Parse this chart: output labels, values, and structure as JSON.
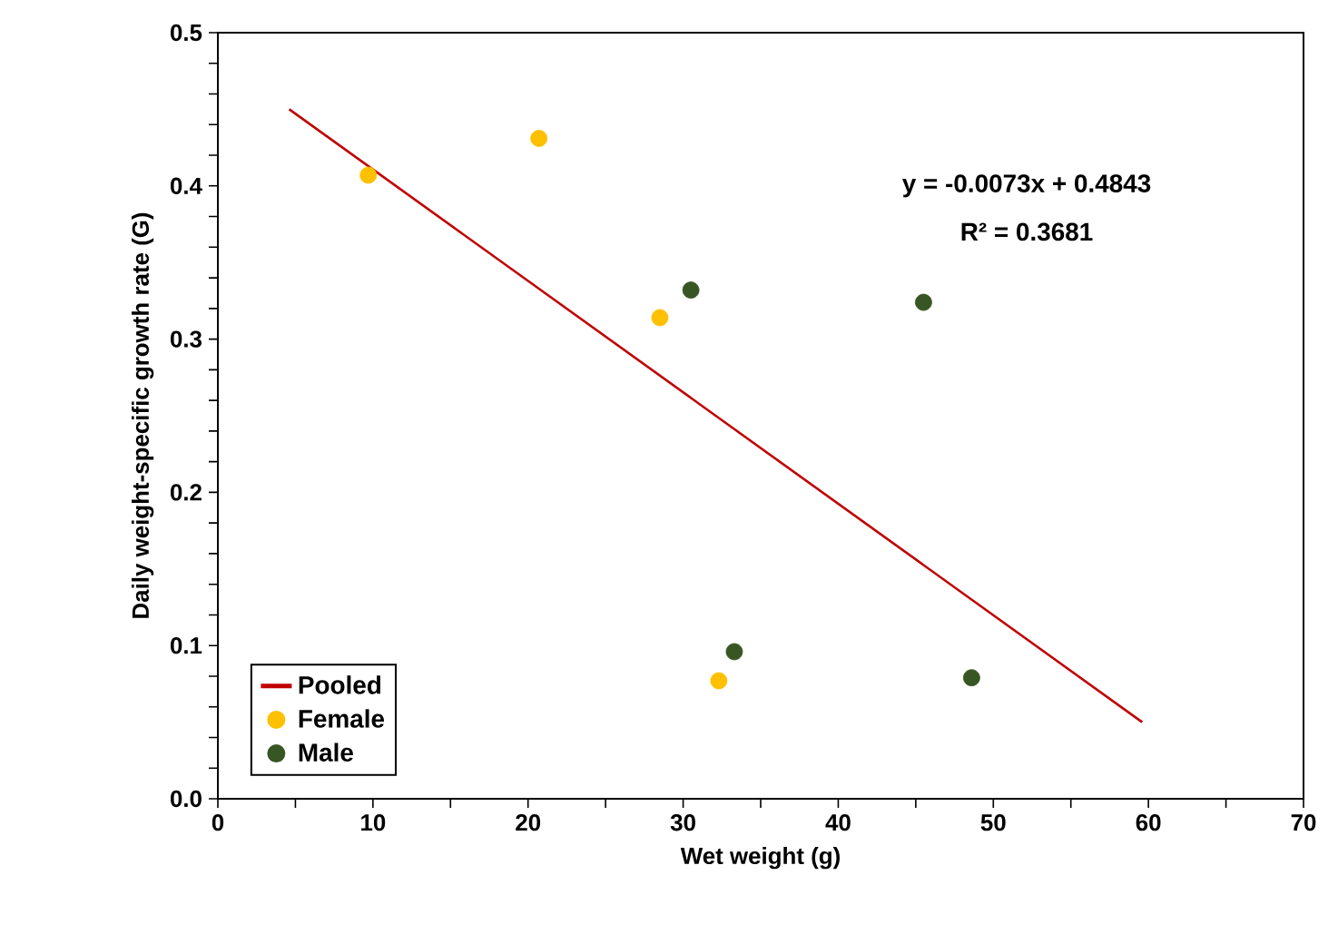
{
  "chart_data": {
    "type": "scatter",
    "xlabel": "Wet weight (g)",
    "ylabel": "Daily weight-specific growth rate (G)",
    "xlim": [
      0,
      70
    ],
    "ylim": [
      0,
      0.5
    ],
    "xticks": [
      0,
      {
        "value": 5,
        "label": null
      },
      10,
      {
        "value": 15,
        "label": null
      },
      20,
      {
        "value": 25,
        "label": null
      },
      30,
      {
        "value": 35,
        "label": null
      },
      40,
      {
        "value": 45,
        "label": null
      },
      50,
      {
        "value": 55,
        "label": null
      },
      60,
      {
        "value": 65,
        "label": null
      },
      70
    ],
    "yticks": [
      {
        "value": 0,
        "label": "0.0"
      },
      {
        "value": 0.02,
        "label": null
      },
      {
        "value": 0.04,
        "label": null
      },
      {
        "value": 0.06,
        "label": null
      },
      {
        "value": 0.08,
        "label": null
      },
      0.1,
      {
        "value": 0.12,
        "label": null
      },
      {
        "value": 0.14,
        "label": null
      },
      {
        "value": 0.16,
        "label": null
      },
      {
        "value": 0.18,
        "label": null
      },
      0.2,
      {
        "value": 0.22,
        "label": null
      },
      {
        "value": 0.24,
        "label": null
      },
      {
        "value": 0.26,
        "label": null
      },
      {
        "value": 0.28,
        "label": null
      },
      0.3,
      {
        "value": 0.32,
        "label": null
      },
      {
        "value": 0.34,
        "label": null
      },
      {
        "value": 0.36,
        "label": null
      },
      {
        "value": 0.38,
        "label": null
      },
      0.4,
      {
        "value": 0.42,
        "label": null
      },
      {
        "value": 0.44,
        "label": null
      },
      {
        "value": 0.46,
        "label": null
      },
      {
        "value": 0.48,
        "label": null
      },
      0.5
    ],
    "series": [
      {
        "name": "Pooled",
        "type": "line",
        "color": "#c00000",
        "marker": "none",
        "x": [
          4.6,
          59.6
        ],
        "values": [
          0.45,
          0.05
        ]
      },
      {
        "name": "Female",
        "color": "#ffc000",
        "marker": "circle",
        "x": [
          9.7,
          20.7,
          28.5,
          32.3
        ],
        "values": [
          0.407,
          0.431,
          0.314,
          0.077
        ]
      },
      {
        "name": "Male",
        "color": "#375623",
        "marker": "circle",
        "x": [
          30.5,
          45.5,
          33.3,
          48.6
        ],
        "values": [
          0.332,
          0.324,
          0.096,
          0.079
        ]
      }
    ],
    "annotations": [
      "y = -0.0073x + 0.4843",
      "R² = 0.3681"
    ],
    "legend": "bottom left",
    "grid": false
  }
}
